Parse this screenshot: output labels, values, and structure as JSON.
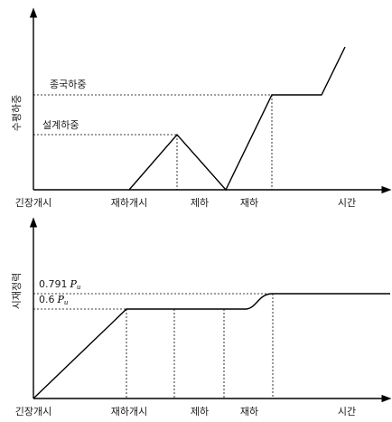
{
  "top_chart": {
    "ylabel": "수평하중",
    "level_high_label": "종국하중",
    "level_low_label": "설계하중",
    "x_labels": [
      "긴장개시",
      "재하개시",
      "제하",
      "재하",
      "시간"
    ]
  },
  "bottom_chart": {
    "ylabel": "시재정력",
    "level_high_label": {
      "value": "0.791",
      "symbol": "P",
      "subscript": "u"
    },
    "level_low_label": {
      "value": "0.6",
      "symbol": "P",
      "subscript": "u"
    },
    "x_labels": [
      "긴장개시",
      "재하개시",
      "제하",
      "재하",
      "시간"
    ]
  },
  "colors": {
    "line": "#000000",
    "background": "#ffffff"
  }
}
